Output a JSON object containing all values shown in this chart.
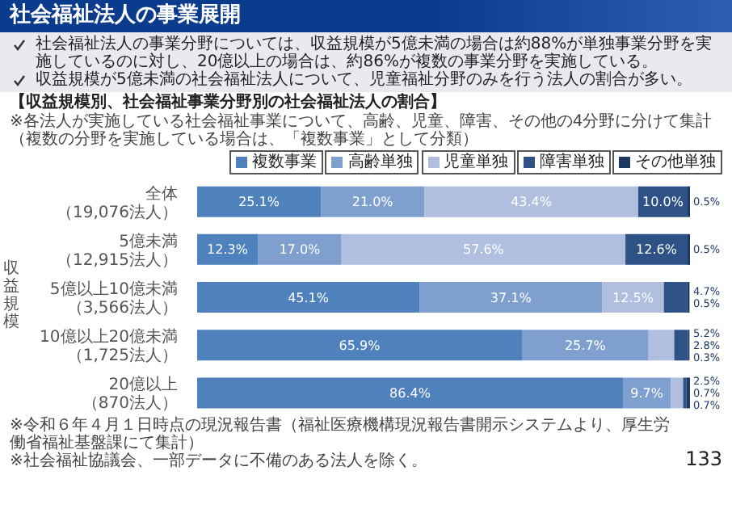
{
  "chart_data": {
    "type": "bar",
    "orientation": "horizontal",
    "stacked": true,
    "title": "社会福祉法人の事業展開",
    "subtitle": "【収益規模別、社会福祉事業分野別の社会福祉法人の割合】",
    "annotations": [
      "社会福祉法人の事業分野については、収益規模が5億未満の場合は約88%が単独事業分野を実施しているのに対し、20億以上の場合は、約86%が複数の事業分野を実施している。",
      "収益規模が5億未満の社会福祉法人について、児童福祉分野のみを行う法人の割合が多い。",
      "※各法人が実施している社会福祉事業について、高齢、児童、障害、その他の4分野に分けて集計（複数の分野を実施している場合は、「複数事業」として分類）",
      "※令和６年４月１日時点の現況報告書（福祉医療機構現況報告書開示システムより、厚生労働省福祉基盤課にて集計）",
      "※社会福祉協議会、一部データに不備のある法人を除く。",
      "133"
    ],
    "ylabel": "収益規模",
    "categories": [
      "全体（19,076法人）",
      "5億未満（12,915法人）",
      "5億以上10億未満（3,566法人）",
      "10億以上20億未満（1,725法人）",
      "20億以上（870法人）"
    ],
    "series": [
      {
        "name": "複数事業",
        "color": "#4f81bd",
        "values": [
          25.1,
          12.3,
          45.1,
          65.9,
          86.4
        ],
        "value_labels": [
          "25.1%",
          "12.3%",
          "45.1%",
          "65.9%",
          "86.4%"
        ]
      },
      {
        "name": "高齢単独",
        "color": "#7f9fcf",
        "values": [
          21.0,
          17.0,
          37.1,
          25.7,
          9.7
        ],
        "value_labels": [
          "21.0%",
          "17.0%",
          "37.1%",
          "25.7%",
          "9.7%"
        ]
      },
      {
        "name": "児童単独",
        "color": "#b0bedf",
        "values": [
          43.4,
          57.6,
          12.5,
          5.2,
          2.5
        ],
        "value_labels": [
          "43.4%",
          "57.6%",
          "12.5%",
          "5.2%",
          "2.5%"
        ]
      },
      {
        "name": "障害単独",
        "color": "#2e5186",
        "values": [
          10.0,
          12.6,
          4.7,
          2.8,
          0.7
        ],
        "value_labels": [
          "10.0%",
          "12.6%",
          "4.7%",
          "2.8%",
          "0.7%"
        ]
      },
      {
        "name": "その他単独",
        "color": "#1f3864",
        "values": [
          0.5,
          0.5,
          0.5,
          0.3,
          0.7
        ],
        "value_labels": [
          "0.5%",
          "0.5%",
          "0.5%",
          "0.3%",
          "0.7%"
        ]
      }
    ],
    "tick_labels": "y",
    "legend": "top",
    "grid": false
  }
}
